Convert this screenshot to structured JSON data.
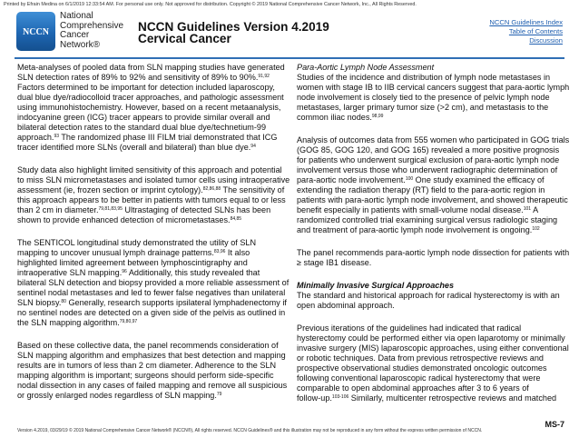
{
  "print_notice": "Printed by Efrain Medina on 6/1/2019 12:33:54 AM. For personal use only. Not approved for distribution. Copyright © 2019 National Comprehensive Cancer Network, Inc., All Rights Reserved.",
  "logo": {
    "text": "NCCN",
    "color": "#1e66b2"
  },
  "org_name": [
    "National",
    "Comprehensive",
    "Cancer",
    "Network®"
  ],
  "title": {
    "line1": "NCCN Guidelines Version 4.2019",
    "line2": "Cervical Cancer"
  },
  "links": [
    "NCCN Guidelines Index",
    "Table of Contents",
    "Discussion"
  ],
  "accent_color": "#2f6fb5",
  "columns": {
    "left": [
      {
        "lines": [
          [
            "Meta-analyses of pooled data from SLN mapping studies have generated"
          ],
          [
            "SLN detection rates of 89% to 92% and sensitivity of 89% to 90%.",
            {
              "sup": "91,92"
            }
          ],
          [
            "Factors determined to be important for detection included laparoscopy,"
          ],
          [
            "dual blue dye/radiocolloid tracer approaches, and pathologic assessment"
          ],
          [
            "using immunohistochemistry. However, based on a recent metaanalysis,"
          ],
          [
            "indocyanine green (ICG) tracer appears to provide similar overall and"
          ],
          [
            "bilateral detection rates to the standard dual blue dye/technetium-99"
          ],
          [
            "approach.",
            {
              "sup": "93"
            },
            " The randomized phase III FILM trial demonstrated that ICG"
          ],
          [
            "tracer identified more SLNs (overall and bilateral) than blue dye.",
            {
              "sup": "94"
            }
          ]
        ]
      },
      {
        "lines": [
          [
            "Study data also highlight limited sensitivity of this approach and potential"
          ],
          [
            "to miss SLN micrometastases and isolated tumor cells using intraoperative"
          ],
          [
            "assessment (ie, frozen section or imprint cytology).",
            {
              "sup": "82,86,88"
            },
            " The sensitivity of"
          ],
          [
            "this approach appears to be better in patients with tumors equal to or less"
          ],
          [
            "than 2 cm in diameter.",
            {
              "sup": "79,81,83,95"
            },
            " Ultrastaging of detected SLNs has been"
          ],
          [
            "shown to provide enhanced detection of micrometastases.",
            {
              "sup": "84,85"
            }
          ]
        ]
      },
      {
        "lines": [
          [
            "The SENTICOL longitudinal study demonstrated the utility of SLN"
          ],
          [
            "mapping to uncover unusual lymph drainage patterns.",
            {
              "sup": "83,96"
            },
            " It also"
          ],
          [
            "highlighted limited agreement between lymphoscintigraphy and"
          ],
          [
            "intraoperative SLN mapping.",
            {
              "sup": "96"
            },
            " Additionally, this study revealed that"
          ],
          [
            "bilateral SLN detection and biopsy provided a more reliable assessment of"
          ],
          [
            "sentinel nodal metastases and led to fewer false negatives than unilateral"
          ],
          [
            "SLN biopsy.",
            {
              "sup": "80"
            },
            " Generally, research supports ipsilateral lymphadenectomy if"
          ],
          [
            "no sentinel nodes are detected on a given side of the pelvis as outlined in"
          ],
          [
            "the SLN mapping algorithm.",
            {
              "sup": "79,80,97"
            }
          ]
        ]
      },
      {
        "lines": [
          [
            "Based on these collective data, the panel recommends consideration of"
          ],
          [
            "SLN mapping algorithm and emphasizes that best detection and mapping"
          ],
          [
            "results are in tumors of less than 2 cm diameter. Adherence to the SLN"
          ],
          [
            "mapping algorithm is important; surgeons should perform side-specific"
          ],
          [
            "nodal dissection in any cases of failed mapping and remove all suspicious"
          ],
          [
            "or grossly enlarged nodes regardless of SLN mapping.",
            {
              "sup": "79"
            }
          ]
        ]
      }
    ],
    "right": [
      {
        "heading": "Para-Aortic Lymph Node Assessment",
        "heading_style": "italic",
        "lines": [
          [
            "Studies of the incidence and distribution of lymph node metastases in"
          ],
          [
            "women with stage IB to IIB cervical cancers suggest that para-aortic lymph"
          ],
          [
            "node involvement is closely tied to the presence of pelvic lymph node"
          ],
          [
            "metastases, larger primary tumor size (>2 cm), and metastasis to the"
          ],
          [
            "common iliac nodes.",
            {
              "sup": "98,99"
            }
          ]
        ]
      },
      {
        "lines": [
          [
            "Analysis of outcomes data from 555 women who participated in GOG trials"
          ],
          [
            "(GOG 85, GOG 120, and GOG 165) revealed a more positive prognosis"
          ],
          [
            "for patients who underwent surgical exclusion of para-aortic lymph node"
          ],
          [
            "involvement versus those who underwent radiographic determination of"
          ],
          [
            "para-aortic node involvement.",
            {
              "sup": "100"
            },
            " One study examined the efficacy of"
          ],
          [
            "extending the radiation therapy (RT) field to the para-aortic region in"
          ],
          [
            "patients with para-aortic lymph node involvement, and showed therapeutic"
          ],
          [
            "benefit especially in patients with small-volume nodal disease.",
            {
              "sup": "101"
            },
            " A"
          ],
          [
            "randomized controlled trial examining surgical versus radiologic staging"
          ],
          [
            "and treatment of para-aortic lymph node involvement is ongoing.",
            {
              "sup": "102"
            }
          ]
        ]
      },
      {
        "lines": [
          [
            "The panel recommends para-aortic lymph node dissection for patients with"
          ],
          [
            "≥ stage IB1 disease."
          ]
        ]
      },
      {
        "heading": "Minimally Invasive Surgical Approaches",
        "heading_style": "bolditalic",
        "lines": [
          [
            "The standard and historical approach for radical hysterectomy is with an"
          ],
          [
            "open abdominal approach."
          ]
        ]
      },
      {
        "lines": [
          [
            "Previous iterations of the guidelines had indicated that radical"
          ],
          [
            "hysterectomy could be performed either via open laparotomy or minimally"
          ],
          [
            "invasive surgery (MIS) laparoscopic approaches, using either conventional"
          ],
          [
            "or robotic techniques. Data from previous retrospective reviews and"
          ],
          [
            "prospective observational studies demonstrated oncologic outcomes"
          ],
          [
            "following conventional laparoscopic radical hysterectomy that were"
          ],
          [
            "comparable to open abdominal approaches after 3 to 6 years of"
          ],
          [
            "follow-up.",
            {
              "sup": "103-106"
            },
            " Similarly, multicenter retrospective reviews and matched"
          ]
        ]
      }
    ]
  },
  "footer": "Version 4.2019, 03/29/19 © 2019 National Comprehensive Cancer Network® (NCCN®), All rights reserved. NCCN Guidelines® and this illustration may not be reproduced in any form without the express written permission of NCCN.",
  "page_number": "MS-7"
}
